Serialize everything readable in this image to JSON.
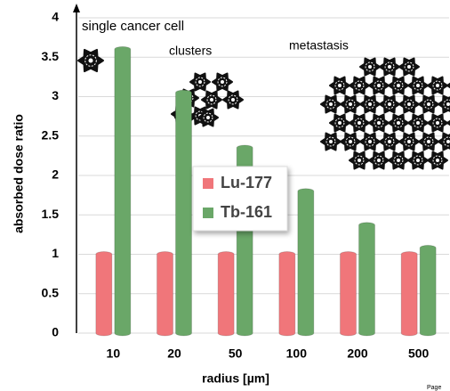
{
  "chart_data": {
    "type": "bar",
    "categories": [
      "10",
      "20",
      "50",
      "100",
      "200",
      "500"
    ],
    "series": [
      {
        "name": "Lu-177",
        "color": "#f0767a",
        "values": [
          1,
          1,
          1,
          1,
          1,
          1
        ]
      },
      {
        "name": "Tb-161",
        "color": "#6aa768",
        "values": [
          3.6,
          3.05,
          2.35,
          1.8,
          1.37,
          1.08
        ]
      }
    ],
    "ylim": [
      0,
      4
    ],
    "yticks": [
      0,
      0.5,
      1,
      1.5,
      2,
      2.5,
      3,
      3.5,
      4
    ],
    "grid": true,
    "ylabel": "absorbed dose ratio",
    "xlabel": "radius [µm]",
    "annotations": [
      "single cancer cell",
      "clusters",
      "metastasis"
    ],
    "footer": "Page"
  }
}
